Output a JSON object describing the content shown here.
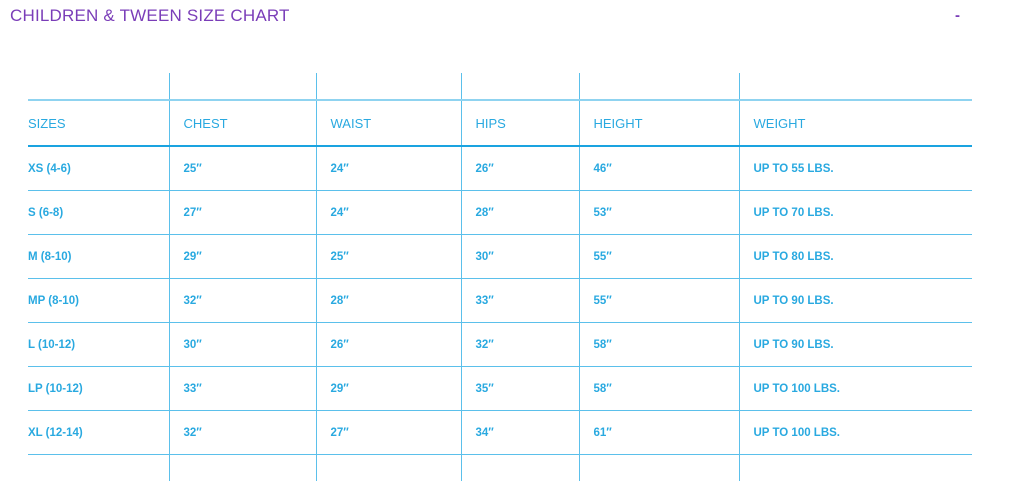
{
  "title": "CHILDREN & TWEEN SIZE CHART",
  "collapse_symbol": "-",
  "colors": {
    "title": "#7a3db8",
    "text": "#29a9e0",
    "lines": "#5bc0eb"
  },
  "columns": [
    "SIZES",
    "CHEST",
    "WAIST",
    "HIPS",
    "HEIGHT",
    "WEIGHT"
  ],
  "rows": [
    [
      "XS (4-6)",
      "25″",
      "24″",
      "26″",
      "46″",
      "UP TO 55 LBS."
    ],
    [
      "S (6-8)",
      "27″",
      "24″",
      "28″",
      "53″",
      "UP TO 70 LBS."
    ],
    [
      "M (8-10)",
      "29″",
      "25″",
      "30″",
      "55″",
      "UP TO 80 LBS."
    ],
    [
      "MP (8-10)",
      "32″",
      "28″",
      "33″",
      "55″",
      "UP TO 90 LBS."
    ],
    [
      "L (10-12)",
      "30″",
      "26″",
      "32″",
      "58″",
      "UP TO 90 LBS."
    ],
    [
      "LP (10-12)",
      "33″",
      "29″",
      "35″",
      "58″",
      "UP TO 100 LBS."
    ],
    [
      "XL (12-14)",
      "32″",
      "27″",
      "34″",
      "61″",
      "UP TO 100 LBS."
    ]
  ]
}
